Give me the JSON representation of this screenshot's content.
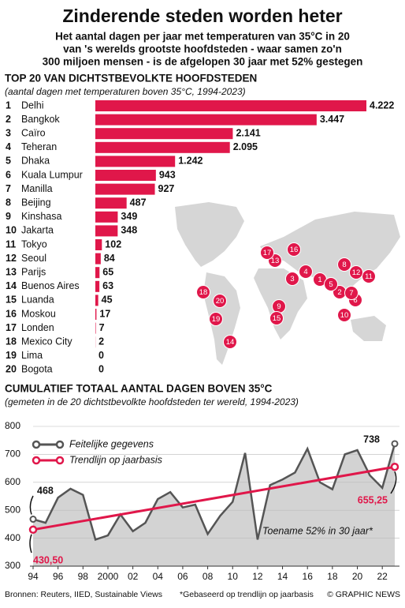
{
  "header": {
    "title": "Zinderende steden worden heter",
    "subtitle_lines": [
      "Het aantal dagen per jaar met temperaturen van 35°C in 20",
      "van 's werelds grootste hoofdsteden - waar samen zo'n",
      "300 miljoen mensen - is de afgelopen 30 jaar met 52% gestegen"
    ]
  },
  "chart_data": [
    {
      "type": "bar",
      "title": "TOP 20 VAN DICHTSTBEVOLKTE HOOFDSTEDEN",
      "subtitle": "(aantal dagen met temperaturen boven 35°C, 1994-2023)",
      "ranks": [
        1,
        2,
        3,
        4,
        5,
        6,
        7,
        8,
        9,
        10,
        11,
        12,
        13,
        14,
        15,
        16,
        17,
        18,
        19,
        20
      ],
      "categories": [
        "Delhi",
        "Bangkok",
        "Caïro",
        "Teheran",
        "Dhaka",
        "Kuala Lumpur",
        "Manilla",
        "Beijing",
        "Kinshasa",
        "Jakarta",
        "Tokyo",
        "Seoul",
        "Parijs",
        "Buenos Aires",
        "Luanda",
        "Moskou",
        "Londen",
        "Mexico City",
        "Lima",
        "Bogota"
      ],
      "values": [
        4222,
        3447,
        2141,
        2095,
        1242,
        943,
        927,
        487,
        349,
        348,
        102,
        84,
        65,
        63,
        45,
        17,
        7,
        2,
        0,
        0
      ],
      "value_labels": [
        "4.222",
        "3.447",
        "2.141",
        "2.095",
        "1.242",
        "943",
        "927",
        "487",
        "349",
        "348",
        "102",
        "84",
        "65",
        "63",
        "45",
        "17",
        "7",
        "2",
        "0",
        "0"
      ],
      "color": "#e0174a",
      "xlim": [
        0,
        4222
      ]
    },
    {
      "type": "line",
      "title": "CUMULATIEF TOTAAL AANTAL DAGEN BOVEN 35°C",
      "subtitle": "(gemeten in de 20 dichtstbevolkte hoofdsteden ter wereld, 1994-2023)",
      "x": [
        1994,
        1995,
        1996,
        1997,
        1998,
        1999,
        2000,
        2001,
        2002,
        2003,
        2004,
        2005,
        2006,
        2007,
        2008,
        2009,
        2010,
        2011,
        2012,
        2013,
        2014,
        2015,
        2016,
        2017,
        2018,
        2019,
        2020,
        2021,
        2022,
        2023
      ],
      "series": [
        {
          "name": "Feitelijke gegevens",
          "color": "#555555",
          "values": [
            468,
            455,
            545,
            577,
            555,
            395,
            410,
            485,
            425,
            455,
            540,
            565,
            510,
            520,
            415,
            480,
            530,
            705,
            395,
            590,
            610,
            635,
            720,
            600,
            575,
            700,
            715,
            625,
            580,
            738
          ]
        },
        {
          "name": "Trendlijn op jaarbasis",
          "color": "#e0174a",
          "x": [
            1994,
            2023
          ],
          "values": [
            430.5,
            655.25
          ],
          "value_labels": [
            "430,50",
            "655,25"
          ]
        }
      ],
      "annotation": "Toename 52% in 30 jaar*",
      "xlim": [
        1994,
        2023
      ],
      "ylim": [
        300,
        800
      ],
      "yticks": [
        300,
        400,
        500,
        600,
        700,
        800
      ],
      "xticks": [
        {
          "value": 1994,
          "label": "94"
        },
        {
          "value": 1996,
          "label": "96"
        },
        {
          "value": 1998,
          "label": "98"
        },
        {
          "value": 2000,
          "label": "2000"
        },
        {
          "value": 2002,
          "label": "02"
        },
        {
          "value": 2004,
          "label": "04"
        },
        {
          "value": 2006,
          "label": "06"
        },
        {
          "value": 2008,
          "label": "08"
        },
        {
          "value": 2010,
          "label": "10"
        },
        {
          "value": 2012,
          "label": "12"
        },
        {
          "value": 2014,
          "label": "14"
        },
        {
          "value": 2016,
          "label": "16"
        },
        {
          "value": 2018,
          "label": "18"
        },
        {
          "value": 2020,
          "label": "20"
        },
        {
          "value": 2022,
          "label": "22"
        }
      ],
      "grid": true,
      "area_color": "#d3d3d3"
    }
  ],
  "footer": {
    "sources": "Bronnen: Reuters, IIED, Sustainable Views",
    "note": "*Gebaseerd op trendlijn op jaarbasis",
    "credit": "© GRAPHIC NEWS"
  }
}
